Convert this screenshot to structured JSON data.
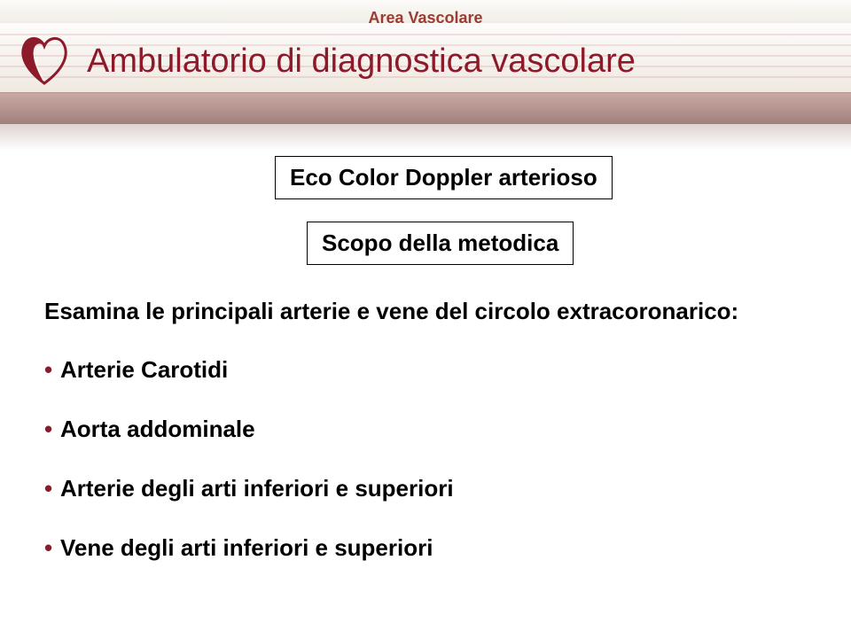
{
  "colors": {
    "brand_red": "#8d1a2b",
    "dark_red": "#6b1420",
    "brown_red": "#9a3c32",
    "text_black": "#000000",
    "band_beige_light": "#f6f3ee",
    "band_beige_dark": "#efe9e0",
    "band_brown_top": "#cba9a3",
    "band_brown_bottom": "#9f817b",
    "white": "#ffffff"
  },
  "header": {
    "section_label": "Area Vascolare",
    "title": "Ambulatorio di diagnostica vascolare"
  },
  "boxes": {
    "box1": "Eco Color Doppler arterioso",
    "box2": "Scopo della metodica"
  },
  "intro": "Esamina le principali arterie e vene del circolo extracoronarico:",
  "bullets": [
    "Arterie Carotidi",
    "Aorta addominale",
    "Arterie degli arti inferiori e superiori",
    "Vene degli arti inferiori e superiori"
  ]
}
